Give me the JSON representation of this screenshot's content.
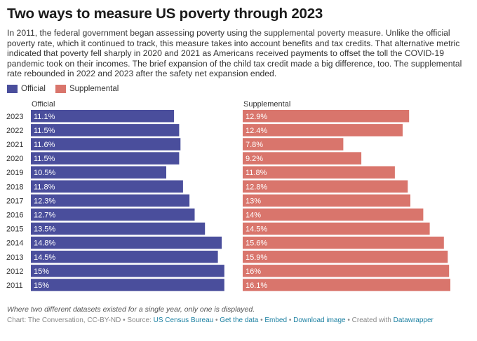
{
  "header": {
    "title": "Two ways to measure US poverty through 2023",
    "description": "In 2011, the federal government began assessing poverty using the supplemental poverty measure. Unlike the official poverty rate, which it continued to track, this measure takes into account benefits and tax credits. That alternative metric indicated that poverty fell sharply in 2020 and 2021 as Americans received payments to offset the toll the COVID-19 pandemic took on their incomes. The brief expansion of the child tax credit made a big difference, too. The supplemental rate rebounded in 2022 and 2023 after the safety net expansion ended."
  },
  "legend": [
    {
      "label": "Official",
      "color": "#4a4e9c"
    },
    {
      "label": "Supplemental",
      "color": "#d9756c"
    }
  ],
  "chart_data": {
    "type": "bar",
    "orientation": "horizontal",
    "categories": [
      "2023",
      "2022",
      "2021",
      "2020",
      "2019",
      "2018",
      "2017",
      "2016",
      "2015",
      "2014",
      "2013",
      "2012",
      "2011"
    ],
    "series": [
      {
        "name": "Official",
        "color": "#4a4e9c",
        "values": [
          11.1,
          11.5,
          11.6,
          11.5,
          10.5,
          11.8,
          12.3,
          12.7,
          13.5,
          14.8,
          14.5,
          15,
          15
        ],
        "labels": [
          "11.1%",
          "11.5%",
          "11.6%",
          "11.5%",
          "10.5%",
          "11.8%",
          "12.3%",
          "12.7%",
          "13.5%",
          "14.8%",
          "14.5%",
          "15%",
          "15%"
        ]
      },
      {
        "name": "Supplemental",
        "color": "#d9756c",
        "values": [
          12.9,
          12.4,
          7.8,
          9.2,
          11.8,
          12.8,
          13,
          14,
          14.5,
          15.6,
          15.9,
          16,
          16.1
        ],
        "labels": [
          "12.9%",
          "12.4%",
          "7.8%",
          "9.2%",
          "11.8%",
          "12.8%",
          "13%",
          "14%",
          "14.5%",
          "15.6%",
          "15.9%",
          "16%",
          "16.1%"
        ]
      }
    ],
    "panel_titles": [
      "Official",
      "Supplemental"
    ],
    "xlim": [
      0,
      16.1
    ],
    "grid": false,
    "legend_position": "top-left"
  },
  "notes": {
    "italic": "Where two different datasets existed for a single year, only one is displayed."
  },
  "footer": {
    "prefix": "Chart: The Conversation, CC-BY-ND • Source: ",
    "source_link": "US Census Bureau",
    "sep1": " • ",
    "get_data": "Get the data",
    "sep2": " • ",
    "embed": "Embed",
    "sep3": " • ",
    "download": "Download image",
    "sep4": " • Created with ",
    "created_with": "Datawrapper"
  }
}
